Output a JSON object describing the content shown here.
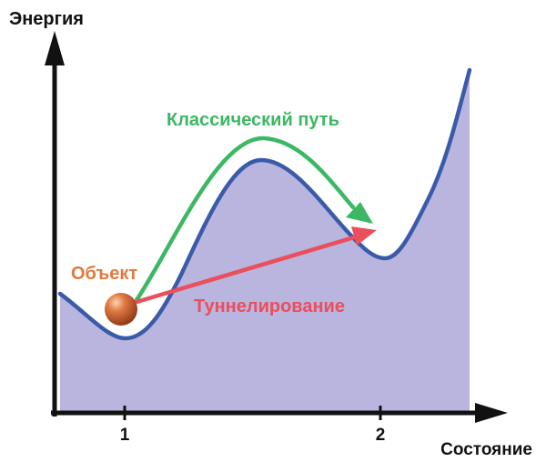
{
  "axes": {
    "y_label": "Энергия",
    "x_label": "Состояние",
    "tick_1": "1",
    "tick_2": "2"
  },
  "labels": {
    "classical": "Классический путь",
    "tunneling": "Туннелирование",
    "object": "Объект"
  },
  "colors": {
    "fill": "#b9b5df",
    "curve": "#3b5ba9",
    "classical": "#3cb864",
    "tunneling": "#ea4f5b",
    "object_label": "#e07a3c",
    "ball": "#c8602e",
    "axis": "#111111"
  }
}
